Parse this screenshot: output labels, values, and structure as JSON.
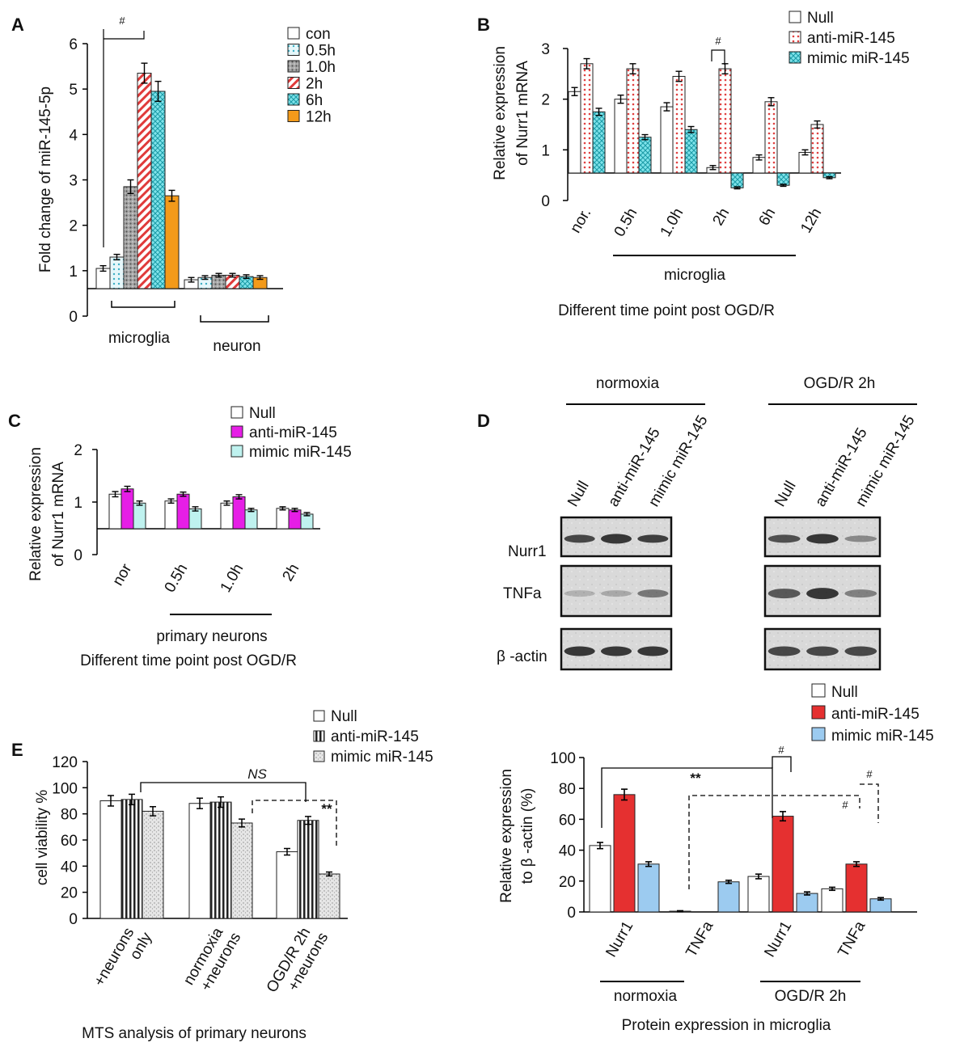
{
  "panel_labels": [
    "A",
    "B",
    "C",
    "D",
    "E"
  ],
  "patterns": {
    "null": "#ffffff",
    "dots": "#bfe8ef",
    "gray": "#9a9a9a",
    "hatch_red": "#e03a3a",
    "grid_cyan": "#5fd6e0",
    "orange": "#f39a1a",
    "magenta": "#e61ee6",
    "light_cyan": "#bff2ef",
    "red": "#e53030",
    "light_blue": "#9ccbf0",
    "vstripe": "#333333",
    "speckle": "#cfcfcf"
  },
  "chart_data": [
    {
      "id": "A",
      "type": "bar",
      "ylabel": "Fold change of miR-145-5p",
      "ylim": [
        0,
        6
      ],
      "yticks": [
        "0",
        "1",
        "2",
        "3",
        "4",
        "5",
        "6"
      ],
      "groups": [
        "microglia",
        "neuron"
      ],
      "series": [
        {
          "name": "con",
          "values": [
            1.05,
            0.8
          ]
        },
        {
          "name": "0.5h",
          "values": [
            1.3,
            0.85
          ]
        },
        {
          "name": "1.0h",
          "values": [
            2.85,
            0.9
          ]
        },
        {
          "name": "2h",
          "values": [
            5.35,
            0.9
          ]
        },
        {
          "name": "6h",
          "values": [
            4.95,
            0.87
          ]
        },
        {
          "name": "12h",
          "values": [
            2.65,
            0.85
          ]
        }
      ],
      "errors": [
        [
          0.06,
          0.05
        ],
        [
          0.06,
          0.04
        ],
        [
          0.15,
          0.04
        ],
        [
          0.22,
          0.04
        ],
        [
          0.22,
          0.04
        ],
        [
          0.12,
          0.04
        ]
      ],
      "annotations": [
        "#"
      ]
    },
    {
      "id": "B",
      "type": "bar",
      "ylabel_lines": [
        "Relative expression",
        "of Nurr1 mRNA"
      ],
      "ylim": [
        0,
        3
      ],
      "yticks": [
        "0",
        "1",
        "2",
        "3"
      ],
      "categories": [
        "nor.",
        "0.5h",
        "1.0h",
        "2h",
        "6h",
        "12h"
      ],
      "bracket_label": "microglia",
      "xlabel": "Different time point post OGD/R",
      "series": [
        {
          "name": "Null",
          "values": [
            2.15,
            2.0,
            1.85,
            0.65,
            0.85,
            0.95
          ]
        },
        {
          "name": "anti-miR-145",
          "values": [
            2.7,
            2.6,
            2.45,
            2.6,
            1.95,
            1.5
          ]
        },
        {
          "name": "mimic miR-145",
          "values": [
            1.75,
            1.25,
            1.4,
            0.25,
            0.3,
            0.45
          ]
        }
      ],
      "errors": [
        [
          0.08,
          0.08,
          0.08,
          0.04,
          0.05,
          0.05
        ],
        [
          0.1,
          0.1,
          0.1,
          0.1,
          0.08,
          0.07
        ],
        [
          0.07,
          0.05,
          0.06,
          0.02,
          0.02,
          0.02
        ]
      ],
      "annotations": [
        "#"
      ]
    },
    {
      "id": "C",
      "type": "bar",
      "ylabel_lines": [
        "Relative expression",
        "of Nurr1 mRNA"
      ],
      "ylim": [
        0,
        2
      ],
      "yticks": [
        "0",
        "1",
        "2"
      ],
      "categories": [
        "nor",
        "0.5h",
        "1.0h",
        "2h"
      ],
      "bracket_label": "primary neurons",
      "xlabel": "Different time point post OGD/R",
      "series": [
        {
          "name": "Null",
          "values": [
            1.15,
            1.02,
            0.98,
            0.88
          ]
        },
        {
          "name": "anti-miR-145",
          "values": [
            1.25,
            1.15,
            1.1,
            0.85
          ]
        },
        {
          "name": "mimic miR-145",
          "values": [
            0.98,
            0.87,
            0.85,
            0.77
          ]
        }
      ],
      "errors": [
        [
          0.05,
          0.04,
          0.04,
          0.03
        ],
        [
          0.05,
          0.04,
          0.04,
          0.03
        ],
        [
          0.04,
          0.04,
          0.03,
          0.03
        ]
      ]
    },
    {
      "id": "D",
      "type": "bar",
      "ylabel_lines": [
        "Relative expression",
        "to β -actin (%)"
      ],
      "ylim": [
        0,
        100
      ],
      "yticks": [
        "0",
        "20",
        "40",
        "60",
        "80",
        "100"
      ],
      "categories": [
        "Nurr1",
        "TNFa",
        "Nurr1",
        "TNFa"
      ],
      "group_labels": [
        "normoxia",
        "OGD/R 2h"
      ],
      "xlabel": "Protein expression in microglia",
      "series": [
        {
          "name": "Null",
          "values": [
            43,
            0.5,
            23,
            15
          ]
        },
        {
          "name": "anti-miR-145",
          "values": [
            76,
            0,
            62,
            31
          ]
        },
        {
          "name": "mimic miR-145",
          "values": [
            31,
            19.5,
            12,
            8.5
          ]
        }
      ],
      "errors": [
        [
          2,
          0.3,
          1.5,
          1
        ],
        [
          3.5,
          0,
          3,
          1.5
        ],
        [
          1.5,
          1,
          1,
          0.8
        ]
      ],
      "annotations": [
        "**",
        "#",
        "#",
        "#"
      ]
    },
    {
      "id": "E",
      "type": "bar",
      "ylabel": "cell viability %",
      "ylim": [
        0,
        120
      ],
      "yticks": [
        "0",
        "20",
        "40",
        "60",
        "80",
        "100",
        "120"
      ],
      "categories": [
        "+neurons only",
        "normoxia +neurons",
        "OGD/R 2h +neurons"
      ],
      "category_lines": [
        [
          "+neurons",
          "only"
        ],
        [
          "normoxia",
          "+neurons"
        ],
        [
          "OGD/R 2h",
          "+neurons"
        ]
      ],
      "xlabel": "MTS analysis of primary neurons",
      "series": [
        {
          "name": "Null",
          "values": [
            90,
            88,
            51
          ]
        },
        {
          "name": "anti-miR-145",
          "values": [
            91,
            89,
            75
          ]
        },
        {
          "name": "mimic miR-145",
          "values": [
            82,
            73,
            34
          ]
        }
      ],
      "errors": [
        [
          4,
          4,
          2.5
        ],
        [
          4,
          4,
          3
        ],
        [
          3.5,
          3,
          1.5
        ]
      ],
      "annotations": [
        "NS",
        "**"
      ]
    }
  ],
  "western_blot": {
    "groups": [
      "normoxia",
      "OGD/R 2h"
    ],
    "lanes": [
      "Null",
      "anti-miR-145",
      "mimic miR-145"
    ],
    "rows": [
      "Nurr1",
      "TNFa",
      "β -actin"
    ]
  }
}
